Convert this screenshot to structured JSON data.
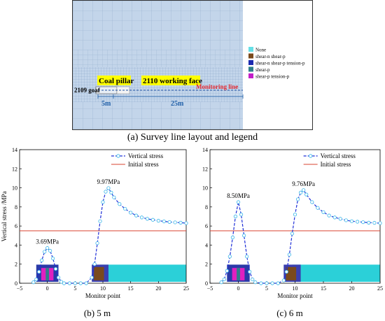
{
  "figure": {
    "caption_a": "(a) Survey line layout and legend",
    "caption_b": "(b) 5 m",
    "caption_c": "(c) 6 m"
  },
  "layout_panel": {
    "coal_pillar": "Coal pillar",
    "working_face": "2110 working face",
    "goaf": "2109 goaf",
    "monitoring_line": "Monitoring line",
    "dim_left": "5m",
    "dim_right": "25m",
    "legend": [
      {
        "label": "None",
        "color": "#66e0e6"
      },
      {
        "label": "shear-n shear-p",
        "color": "#7a4a1c"
      },
      {
        "label": "shear-n shear-p tension-p",
        "color": "#1c2bb0"
      },
      {
        "label": "shear-p",
        "color": "#2e7f8a"
      },
      {
        "label": "shear-p tension-p",
        "color": "#c21ec8"
      }
    ],
    "colors": {
      "mesh_fill": "#bfd3ea",
      "highlight": "#ffff00",
      "monitor_text": "#e0262f",
      "dim_text": "#1f5fa8"
    }
  },
  "chart_data": [
    {
      "type": "line",
      "id": "b",
      "xlabel": "Monitor point",
      "ylabel": "Vertical stress /MPa",
      "xlim": [
        -5,
        25
      ],
      "ylim": [
        0,
        14
      ],
      "xticks": [
        -5,
        0,
        5,
        10,
        15,
        20,
        25
      ],
      "yticks": [
        0,
        2,
        4,
        6,
        8,
        10,
        12,
        14
      ],
      "series": [
        {
          "name": "Vertical stress",
          "color": "#1f2fd8",
          "marker_color": "#36b5e8",
          "x": [
            -2.5,
            -2,
            -1.5,
            -1,
            -0.5,
            0,
            0.5,
            1,
            1.5,
            2,
            2.5,
            3,
            4,
            5,
            6,
            7,
            8,
            8.5,
            9,
            9.5,
            10,
            10.5,
            11,
            11.5,
            12,
            13,
            14,
            15,
            16,
            17,
            18,
            19,
            20,
            21,
            22,
            23,
            24,
            25
          ],
          "y": [
            0.1,
            0.4,
            1.2,
            2.4,
            3.3,
            3.69,
            3.4,
            2.6,
            1.5,
            0.6,
            0.15,
            0,
            0,
            0,
            0,
            0,
            0.6,
            2.0,
            4.2,
            6.5,
            8.5,
            9.6,
            9.97,
            9.5,
            9.0,
            8.3,
            7.8,
            7.4,
            7.1,
            6.9,
            6.75,
            6.65,
            6.55,
            6.48,
            6.42,
            6.38,
            6.35,
            6.3
          ]
        },
        {
          "name": "Initial stress",
          "color": "#d9432f",
          "x": [
            -5,
            25
          ],
          "y": [
            5.5,
            5.5
          ]
        }
      ],
      "annotations": [
        {
          "text": "3.69MPa",
          "x": 0,
          "y": 3.69
        },
        {
          "text": "9.97MPa",
          "x": 11,
          "y": 9.97
        }
      ]
    },
    {
      "type": "line",
      "id": "c",
      "xlabel": "Monitor point",
      "ylabel": "",
      "xlim": [
        -5,
        25
      ],
      "ylim": [
        0,
        14
      ],
      "xticks": [
        -5,
        0,
        5,
        10,
        15,
        20,
        25
      ],
      "yticks": [
        0,
        2,
        4,
        6,
        8,
        10,
        12,
        14
      ],
      "series": [
        {
          "name": "Vertical stress",
          "color": "#1f2fd8",
          "marker_color": "#36b5e8",
          "x": [
            -3,
            -2.5,
            -2,
            -1.5,
            -1,
            -0.5,
            0,
            0.5,
            1,
            1.5,
            2,
            2.5,
            3,
            4,
            5,
            6,
            7,
            8,
            8.5,
            9,
            9.5,
            10,
            10.5,
            11,
            11.5,
            12,
            13,
            14,
            15,
            16,
            17,
            18,
            19,
            20,
            21,
            22,
            23,
            24,
            25
          ],
          "y": [
            0.1,
            0.4,
            1.3,
            2.8,
            4.8,
            7.0,
            8.5,
            7.2,
            5.0,
            2.8,
            1.2,
            0.4,
            0.1,
            0,
            0,
            0,
            0,
            0.3,
            1.2,
            3.0,
            5.2,
            7.2,
            8.8,
            9.5,
            9.76,
            9.3,
            8.5,
            7.9,
            7.45,
            7.1,
            6.9,
            6.75,
            6.6,
            6.5,
            6.45,
            6.4,
            6.35,
            6.33,
            6.3
          ]
        },
        {
          "name": "Initial stress",
          "color": "#d9432f",
          "x": [
            -5,
            25
          ],
          "y": [
            5.5,
            5.5
          ]
        }
      ],
      "annotations": [
        {
          "text": "8.50MPa",
          "x": 0,
          "y": 8.5
        },
        {
          "text": "9.76MPa",
          "x": 11.5,
          "y": 9.76
        }
      ]
    }
  ]
}
